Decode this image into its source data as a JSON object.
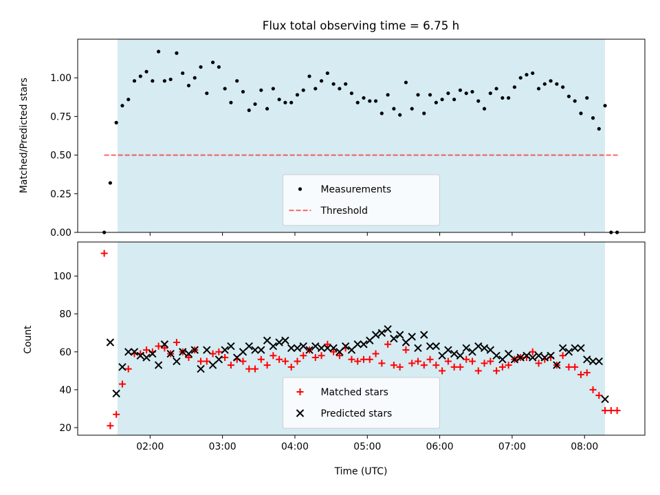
{
  "title": "Flux total observing time = 6.75 h",
  "colors": {
    "observing_span": "#add8e6",
    "measurement": "#000000",
    "threshold": "#ff0000",
    "matched": "#ff0000",
    "predicted": "#000000"
  },
  "chart_data": [
    {
      "type": "scatter",
      "title": "Flux total observing time = 6.75 h",
      "xlabel": "",
      "ylabel": "Matched/Predicted stars",
      "xlim": [
        "01:00",
        "08:50"
      ],
      "ylim": [
        0,
        1.25
      ],
      "x_ticks": [
        "02:00",
        "03:00",
        "04:00",
        "05:00",
        "06:00",
        "07:00",
        "08:00"
      ],
      "y_ticks": [
        "0.00",
        "0.25",
        "0.50",
        "0.75",
        "1.00"
      ],
      "shaded_span": [
        "01:33",
        "08:17"
      ],
      "legend": {
        "placement": "lower-center",
        "entries": [
          "Measurements",
          "Threshold"
        ]
      },
      "threshold": {
        "name": "Threshold",
        "y": 0.5,
        "x_range": [
          "01:22",
          "08:28"
        ]
      },
      "series": [
        {
          "name": "Measurements",
          "marker": "dot",
          "x": [
            "01:22",
            "01:27",
            "01:32",
            "01:37",
            "01:42",
            "01:47",
            "01:52",
            "01:57",
            "02:02",
            "02:07",
            "02:12",
            "02:17",
            "02:22",
            "02:27",
            "02:32",
            "02:37",
            "02:42",
            "02:47",
            "02:52",
            "02:57",
            "03:02",
            "03:07",
            "03:12",
            "03:17",
            "03:22",
            "03:27",
            "03:32",
            "03:37",
            "03:42",
            "03:47",
            "03:52",
            "03:57",
            "04:02",
            "04:07",
            "04:12",
            "04:17",
            "04:22",
            "04:27",
            "04:32",
            "04:37",
            "04:42",
            "04:47",
            "04:52",
            "04:57",
            "05:02",
            "05:07",
            "05:12",
            "05:17",
            "05:22",
            "05:27",
            "05:32",
            "05:37",
            "05:42",
            "05:47",
            "05:52",
            "05:57",
            "06:02",
            "06:07",
            "06:12",
            "06:17",
            "06:22",
            "06:27",
            "06:32",
            "06:37",
            "06:42",
            "06:47",
            "06:52",
            "06:57",
            "07:02",
            "07:07",
            "07:12",
            "07:17",
            "07:22",
            "07:27",
            "07:32",
            "07:37",
            "07:42",
            "07:47",
            "07:52",
            "07:57",
            "08:02",
            "08:07",
            "08:12",
            "08:17",
            "08:22",
            "08:27"
          ],
          "y": [
            0.0,
            0.32,
            0.71,
            0.82,
            0.86,
            0.98,
            1.01,
            1.04,
            0.98,
            1.17,
            0.98,
            0.99,
            1.16,
            1.03,
            0.95,
            1.0,
            1.07,
            0.9,
            1.1,
            1.07,
            0.93,
            0.84,
            0.98,
            0.91,
            0.79,
            0.83,
            0.92,
            0.8,
            0.93,
            0.86,
            0.84,
            0.84,
            0.89,
            0.92,
            1.01,
            0.93,
            0.98,
            1.03,
            0.96,
            0.93,
            0.96,
            0.9,
            0.84,
            0.87,
            0.85,
            0.85,
            0.77,
            0.89,
            0.8,
            0.76,
            0.97,
            0.8,
            0.89,
            0.77,
            0.89,
            0.84,
            0.86,
            0.9,
            0.86,
            0.92,
            0.9,
            0.91,
            0.85,
            0.8,
            0.9,
            0.93,
            0.87,
            0.87,
            0.94,
            1.0,
            1.02,
            1.03,
            0.93,
            0.96,
            0.98,
            0.96,
            0.94,
            0.88,
            0.85,
            0.77,
            0.87,
            0.74,
            0.67,
            0.82,
            0.0,
            0.0
          ]
        }
      ]
    },
    {
      "type": "scatter",
      "xlabel": "Time (UTC)",
      "ylabel": "Count",
      "xlim": [
        "01:00",
        "08:50"
      ],
      "ylim": [
        16,
        118
      ],
      "x_ticks": [
        "02:00",
        "03:00",
        "04:00",
        "05:00",
        "06:00",
        "07:00",
        "08:00"
      ],
      "y_ticks": [
        "20",
        "40",
        "60",
        "80",
        "100"
      ],
      "shaded_span": [
        "01:33",
        "08:17"
      ],
      "legend": {
        "placement": "lower-center",
        "entries": [
          "Matched stars",
          "Predicted stars"
        ]
      },
      "series": [
        {
          "name": "Matched stars",
          "marker": "plus",
          "x": [
            "01:22",
            "01:27",
            "01:32",
            "01:37",
            "01:42",
            "01:47",
            "01:52",
            "01:57",
            "02:02",
            "02:07",
            "02:12",
            "02:17",
            "02:22",
            "02:27",
            "02:32",
            "02:37",
            "02:42",
            "02:47",
            "02:52",
            "02:57",
            "03:02",
            "03:07",
            "03:12",
            "03:17",
            "03:22",
            "03:27",
            "03:32",
            "03:37",
            "03:42",
            "03:47",
            "03:52",
            "03:57",
            "04:02",
            "04:07",
            "04:12",
            "04:17",
            "04:22",
            "04:27",
            "04:32",
            "04:37",
            "04:42",
            "04:47",
            "04:52",
            "04:57",
            "05:02",
            "05:07",
            "05:12",
            "05:17",
            "05:22",
            "05:27",
            "05:32",
            "05:37",
            "05:42",
            "05:47",
            "05:52",
            "05:57",
            "06:02",
            "06:07",
            "06:12",
            "06:17",
            "06:22",
            "06:27",
            "06:32",
            "06:37",
            "06:42",
            "06:47",
            "06:52",
            "06:57",
            "07:02",
            "07:07",
            "07:12",
            "07:17",
            "07:22",
            "07:27",
            "07:32",
            "07:37",
            "07:42",
            "07:47",
            "07:52",
            "07:57",
            "08:02",
            "08:07",
            "08:12",
            "08:17",
            "08:22",
            "08:27"
          ],
          "y": [
            112,
            21,
            27,
            43,
            51,
            59,
            59,
            61,
            60,
            63,
            62,
            59,
            65,
            60,
            57,
            61,
            55,
            55,
            59,
            60,
            57,
            53,
            56,
            55,
            51,
            51,
            56,
            53,
            58,
            56,
            55,
            52,
            55,
            58,
            61,
            57,
            58,
            64,
            60,
            58,
            62,
            56,
            55,
            56,
            56,
            59,
            54,
            64,
            53,
            52,
            61,
            54,
            55,
            53,
            56,
            53,
            50,
            55,
            52,
            52,
            56,
            55,
            50,
            54,
            55,
            50,
            52,
            53,
            56,
            57,
            57,
            60,
            54,
            56,
            57,
            53,
            58,
            52,
            52,
            48,
            49,
            40,
            37,
            29,
            29,
            29
          ]
        },
        {
          "name": "Predicted stars",
          "marker": "x",
          "x": [
            "01:27",
            "01:32",
            "01:37",
            "01:42",
            "01:47",
            "01:52",
            "01:57",
            "02:02",
            "02:07",
            "02:12",
            "02:17",
            "02:22",
            "02:27",
            "02:32",
            "02:37",
            "02:42",
            "02:47",
            "02:52",
            "02:57",
            "03:02",
            "03:07",
            "03:12",
            "03:17",
            "03:22",
            "03:27",
            "03:32",
            "03:37",
            "03:42",
            "03:47",
            "03:52",
            "03:57",
            "04:02",
            "04:07",
            "04:12",
            "04:17",
            "04:22",
            "04:27",
            "04:32",
            "04:37",
            "04:42",
            "04:47",
            "04:52",
            "04:57",
            "05:02",
            "05:07",
            "05:12",
            "05:17",
            "05:22",
            "05:27",
            "05:32",
            "05:37",
            "05:42",
            "05:47",
            "05:52",
            "05:57",
            "06:02",
            "06:07",
            "06:12",
            "06:17",
            "06:22",
            "06:27",
            "06:32",
            "06:37",
            "06:42",
            "06:47",
            "06:52",
            "06:57",
            "07:02",
            "07:07",
            "07:12",
            "07:17",
            "07:22",
            "07:27",
            "07:32",
            "07:37",
            "07:42",
            "07:47",
            "07:52",
            "07:57",
            "08:02",
            "08:07",
            "08:12",
            "08:17"
          ],
          "y": [
            65,
            38,
            52,
            60,
            60,
            58,
            57,
            59,
            53,
            64,
            59,
            55,
            60,
            59,
            61,
            51,
            61,
            53,
            56,
            61,
            63,
            57,
            60,
            63,
            61,
            61,
            66,
            63,
            65,
            66,
            62,
            62,
            63,
            61,
            63,
            62,
            62,
            62,
            60,
            63,
            61,
            64,
            64,
            66,
            69,
            70,
            72,
            67,
            69,
            65,
            68,
            62,
            69,
            63,
            63,
            58,
            61,
            59,
            58,
            62,
            60,
            63,
            62,
            61,
            58,
            56,
            59,
            56,
            57,
            58,
            57,
            58,
            57,
            58,
            53,
            62,
            60,
            62,
            62,
            56,
            55,
            55,
            35
          ]
        }
      ]
    }
  ]
}
